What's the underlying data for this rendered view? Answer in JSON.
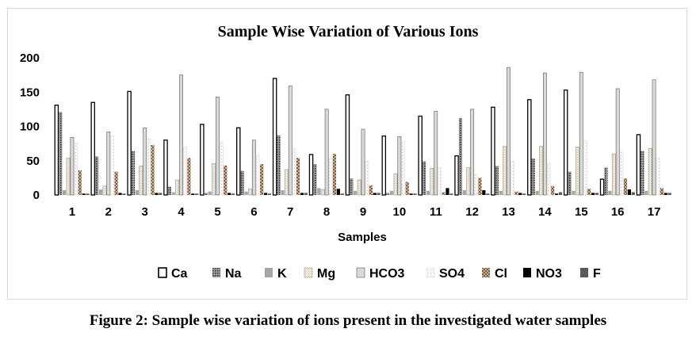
{
  "caption": "Figure 2: Sample wise variation of ions present in the investigated water samples",
  "chart_data": {
    "type": "bar",
    "title": "Sample Wise Variation of Various Ions",
    "xlabel": "Samples",
    "ylabel": "",
    "ylim": [
      0,
      200
    ],
    "yticks": [
      0,
      50,
      100,
      150,
      200
    ],
    "grid": false,
    "legend_position": "bottom",
    "categories": [
      "1",
      "2",
      "3",
      "4",
      "5",
      "6",
      "7",
      "8",
      "9",
      "10",
      "11",
      "12",
      "13",
      "14",
      "15",
      "16",
      "17"
    ],
    "series": [
      {
        "name": "Ca",
        "color": "#ffffff",
        "pattern": "outline-black",
        "values": [
          131,
          135,
          151,
          80,
          103,
          98,
          170,
          59,
          146,
          86,
          115,
          57,
          128,
          139,
          153,
          23,
          88
        ]
      },
      {
        "name": "Na",
        "color": "#808080",
        "pattern": "dark-dots",
        "values": [
          121,
          56,
          64,
          12,
          3,
          35,
          87,
          45,
          24,
          3,
          49,
          112,
          42,
          53,
          34,
          40,
          64
        ]
      },
      {
        "name": "K",
        "color": "#a6a6a6",
        "pattern": "solid-gray",
        "values": [
          7,
          8,
          7,
          4,
          5,
          5,
          7,
          10,
          6,
          6,
          6,
          7,
          6,
          6,
          6,
          6,
          6
        ]
      },
      {
        "name": "Mg",
        "color": "#e7e2d6",
        "pattern": "light-beige",
        "values": [
          54,
          13,
          42,
          22,
          46,
          9,
          37,
          8,
          22,
          31,
          39,
          40,
          71,
          71,
          70,
          60,
          68
        ]
      },
      {
        "name": "HCO3",
        "color": "#d9d9d9",
        "pattern": "light-gray",
        "values": [
          84,
          92,
          98,
          175,
          143,
          80,
          159,
          125,
          96,
          85,
          122,
          125,
          186,
          178,
          179,
          155,
          168
        ]
      },
      {
        "name": "SO4",
        "color": "#f2f2f2",
        "pattern": "dotted-white",
        "values": [
          76,
          86,
          82,
          70,
          78,
          58,
          68,
          53,
          49,
          78,
          40,
          30,
          49,
          47,
          79,
          64,
          54
        ]
      },
      {
        "name": "Cl",
        "color": "#a08060",
        "pattern": "brown-checker",
        "values": [
          36,
          34,
          73,
          54,
          43,
          45,
          54,
          60,
          14,
          19,
          4,
          25,
          5,
          13,
          9,
          24,
          10
        ]
      },
      {
        "name": "NO3",
        "color": "#000000",
        "pattern": "solid-black",
        "values": [
          2,
          3,
          3,
          2,
          3,
          3,
          3,
          9,
          3,
          2,
          10,
          7,
          3,
          2,
          3,
          8,
          3
        ]
      },
      {
        "name": "F",
        "color": "#595959",
        "pattern": "solid-dark-gray",
        "values": [
          2,
          2,
          3,
          2,
          2,
          2,
          3,
          2,
          3,
          2,
          2,
          2,
          2,
          4,
          3,
          4,
          3
        ]
      }
    ]
  }
}
